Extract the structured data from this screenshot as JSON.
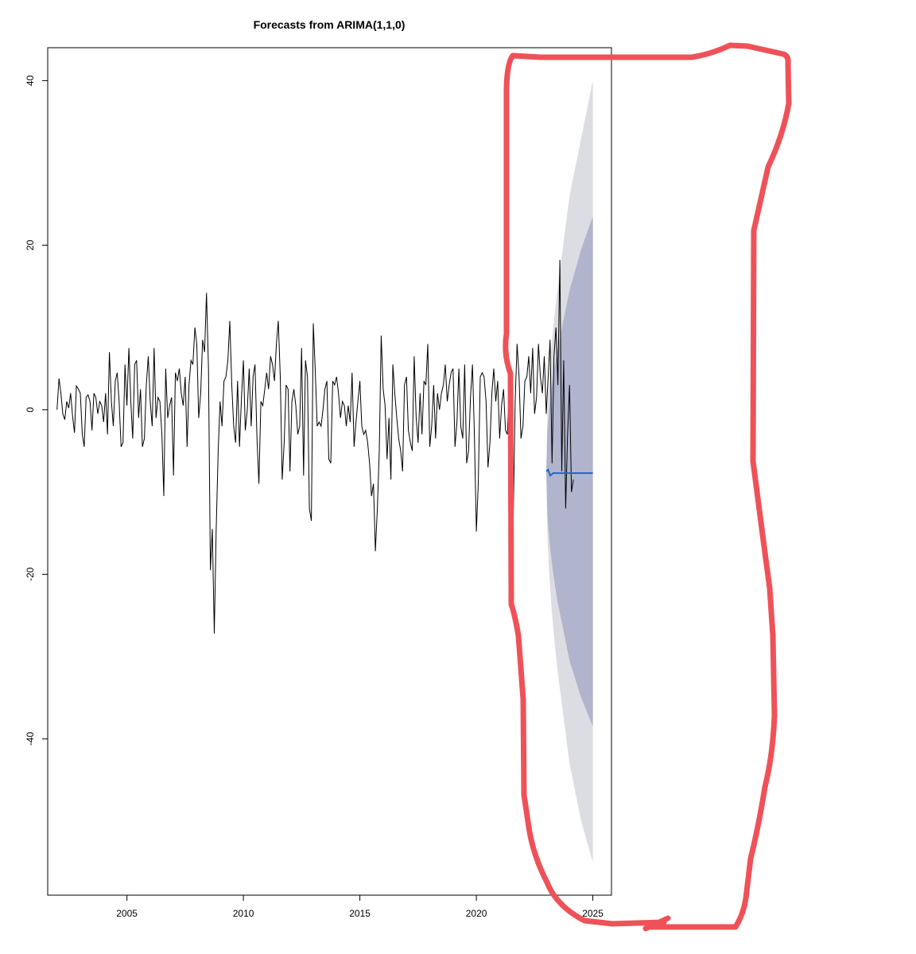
{
  "chart_data": {
    "type": "line",
    "title": "Forecasts from ARIMA(1,1,0)",
    "xlabel": "",
    "ylabel": "",
    "xlim": [
      2001.6,
      2025.8
    ],
    "ylim": [
      -59,
      44
    ],
    "x_ticks": [
      2005,
      2010,
      2015,
      2020,
      2025
    ],
    "y_ticks": [
      -40,
      -20,
      0,
      20,
      40
    ],
    "grid": false,
    "legend": "none",
    "series": [
      {
        "role": "observed",
        "color": "#000000",
        "start": 2002.0,
        "step": 0.0833333,
        "values": [
          0.0,
          3.8,
          2.0,
          -0.5,
          -1.2,
          1.0,
          0.2,
          2.0,
          -0.8,
          -2.8,
          2.9,
          2.5,
          2.0,
          -3.0,
          -4.5,
          1.5,
          1.8,
          1.0,
          -2.5,
          2.0,
          1.5,
          -0.5,
          1.0,
          0.5,
          -1.5,
          2.0,
          -3.0,
          7.0,
          1.0,
          -2.0,
          3.5,
          4.5,
          1.0,
          -4.5,
          -4.0,
          5.5,
          0.5,
          7.5,
          1.0,
          -3.5,
          5.5,
          6.0,
          -1.0,
          2.5,
          -4.5,
          -3.5,
          3.0,
          6.5,
          1.0,
          -2.0,
          7.5,
          -1.0,
          1.5,
          1.0,
          -3.0,
          -10.5,
          5.0,
          -1.0,
          0.5,
          1.5,
          -8.0,
          4.5,
          3.5,
          5.0,
          2.0,
          0.5,
          4.0,
          -4.5,
          3.0,
          6.0,
          5.5,
          10.0,
          8.0,
          -1.0,
          2.0,
          8.5,
          7.0,
          14.2,
          5.0,
          -19.5,
          -14.5,
          -27.2,
          -14.5,
          -5.0,
          1.0,
          -2.0,
          3.5,
          4.0,
          6.0,
          10.8,
          3.0,
          -2.0,
          -4.0,
          3.5,
          -4.5,
          1.5,
          6.0,
          -2.5,
          0.0,
          5.0,
          -2.0,
          4.0,
          5.5,
          -3.5,
          -9.0,
          1.0,
          0.5,
          2.5,
          4.5,
          2.5,
          6.5,
          5.5,
          3.5,
          8.0,
          10.8,
          4.0,
          -8.5,
          -4.0,
          3.0,
          2.5,
          -7.5,
          1.0,
          2.5,
          0.5,
          -3.0,
          -2.0,
          7.5,
          -8.0,
          6.0,
          4.0,
          -12.0,
          -13.5,
          10.5,
          5.0,
          -2.0,
          -1.5,
          -2.0,
          0.0,
          2.5,
          3.5,
          -6.0,
          -6.5,
          3.5,
          3.0,
          4.0,
          2.0,
          -1.0,
          1.0,
          0.5,
          -2.0,
          0.5,
          -1.5,
          4.5,
          -4.5,
          -1.5,
          1.0,
          3.5,
          -2.0,
          -3.0,
          -2.5,
          -4.0,
          -6.5,
          -10.5,
          -9.0,
          -17.2,
          -12.0,
          -5.0,
          9.0,
          2.5,
          0.5,
          -6.0,
          -1.0,
          -8.5,
          5.5,
          2.0,
          -1.0,
          -3.5,
          -5.0,
          -7.5,
          3.0,
          4.0,
          -2.5,
          -4.0,
          -5.0,
          6.5,
          -1.0,
          -4.0,
          2.0,
          -3.0,
          3.5,
          3.0,
          8.0,
          -4.5,
          -2.0,
          3.0,
          -3.5,
          2.0,
          0.0,
          2.0,
          3.0,
          5.5,
          1.0,
          3.0,
          4.5,
          5.0,
          -4.5,
          -1.5,
          5.0,
          -2.0,
          -3.5,
          5.5,
          -6.5,
          -5.0,
          1.5,
          5.5,
          -3.0,
          -14.8,
          -9.0,
          4.0,
          4.5,
          4.0,
          1.0,
          -7.0,
          -4.0,
          2.0,
          5.0,
          1.0,
          3.5,
          -3.5,
          0.5,
          2.5,
          -2.5,
          -3.0,
          3.0,
          -22.0,
          -13.0,
          1.0,
          8.0,
          4.0,
          -3.5,
          -2.0,
          3.5,
          4.0,
          6.5,
          2.0,
          7.5,
          -0.5,
          1.5,
          8.0,
          4.0,
          2.0,
          6.5,
          -0.5,
          4.0,
          8.5,
          -6.5,
          6.5,
          10.0,
          3.0,
          18.2,
          -7.5,
          6.0,
          -12.0,
          -3.0,
          3.0,
          -10.0,
          -8.5
        ]
      },
      {
        "role": "forecast",
        "color": "#2166ce",
        "x": [
          2023.0,
          2023.08,
          2023.17,
          2023.3,
          2025.0
        ],
        "values": [
          -7.5,
          -7.3,
          -8.0,
          -7.7,
          -7.7
        ]
      }
    ],
    "intervals": [
      {
        "level": 95,
        "color": "#dcdce3",
        "x": [
          2023.0,
          2023.5,
          2024.0,
          2024.5,
          2025.0
        ],
        "upper": [
          -7.5,
          15.0,
          26.0,
          33.0,
          40.0
        ],
        "lower": [
          -7.5,
          -32.0,
          -43.0,
          -50.0,
          -55.0
        ]
      },
      {
        "level": 80,
        "color": "#b0b4cd",
        "x": [
          2023.0,
          2023.5,
          2024.0,
          2024.5,
          2025.0
        ],
        "upper": [
          -7.5,
          7.5,
          14.5,
          19.5,
          23.5
        ],
        "lower": [
          -7.5,
          -23.5,
          -30.5,
          -35.0,
          -38.5
        ]
      }
    ]
  },
  "annotation": {
    "color": "#ee5258"
  }
}
